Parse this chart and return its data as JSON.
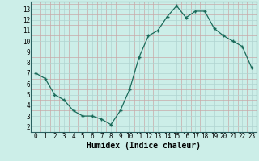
{
  "x": [
    0,
    1,
    2,
    3,
    4,
    5,
    6,
    7,
    8,
    9,
    10,
    11,
    12,
    13,
    14,
    15,
    16,
    17,
    18,
    19,
    20,
    21,
    22,
    23
  ],
  "y": [
    7.0,
    6.5,
    5.0,
    4.5,
    3.5,
    3.0,
    3.0,
    2.7,
    2.2,
    3.5,
    5.5,
    8.5,
    10.5,
    11.0,
    12.3,
    13.3,
    12.2,
    12.8,
    12.8,
    11.2,
    10.5,
    10.0,
    9.5,
    7.5
  ],
  "xlabel": "Humidex (Indice chaleur)",
  "xlim": [
    -0.5,
    23.5
  ],
  "ylim": [
    1.5,
    13.7
  ],
  "yticks": [
    2,
    3,
    4,
    5,
    6,
    7,
    8,
    9,
    10,
    11,
    12,
    13
  ],
  "xticks": [
    0,
    1,
    2,
    3,
    4,
    5,
    6,
    7,
    8,
    9,
    10,
    11,
    12,
    13,
    14,
    15,
    16,
    17,
    18,
    19,
    20,
    21,
    22,
    23
  ],
  "line_color": "#1a6b5a",
  "bg_color": "#cceee8",
  "grid_minor_color": "#c8a8a8",
  "grid_major_color": "#b0d4d0",
  "font_family": "monospace",
  "tick_fontsize": 5.5,
  "xlabel_fontsize": 7.0
}
